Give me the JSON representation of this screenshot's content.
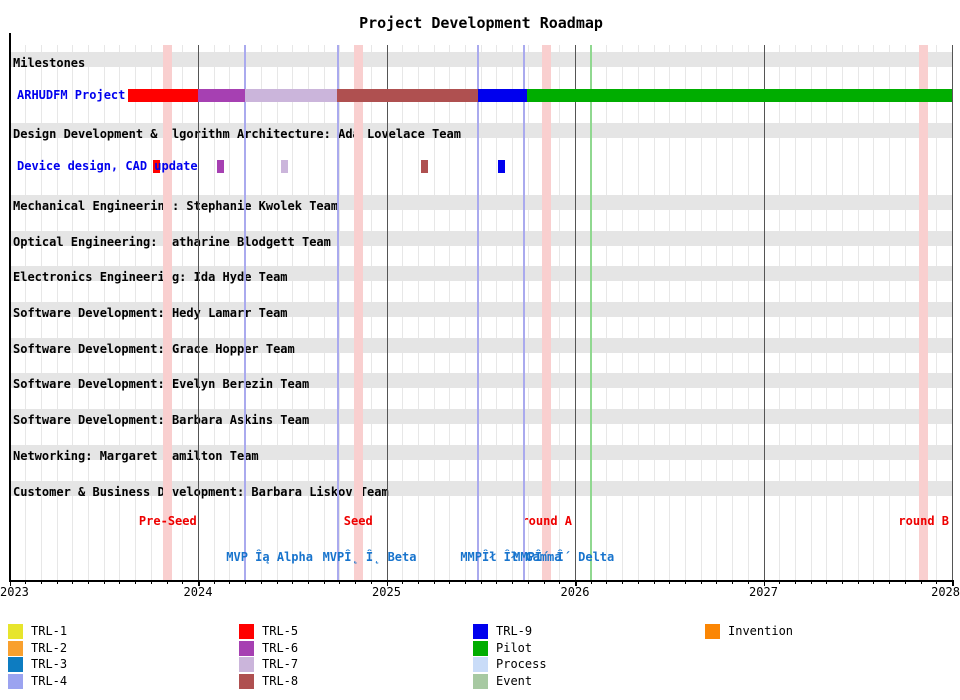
{
  "title": "Project Development Roadmap",
  "colors": {
    "background": "#FFFFFF",
    "section_band": "#E5E5E5",
    "grid_minor": "#E7E7E7",
    "grid_year": "#555555",
    "axis": "#000000",
    "task_label": "#0000EE",
    "funding_label": "#EE0000",
    "funding_band": "#F9CFCF",
    "milestone_label": "#1874CD",
    "milestone_line": "#AAAAEE",
    "event_line": "#90D890",
    "categories": {
      "TRL-1": "#E7E52C",
      "TRL-2": "#F9A02E",
      "TRL-3": "#0D7CC1",
      "TRL-4": "#9BA3F0",
      "TRL-5": "#FF0000",
      "TRL-6": "#A640B2",
      "TRL-7": "#CBB5DB",
      "TRL-8": "#AF5050",
      "TRL-9": "#0000EE",
      "Pilot": "#00AD00",
      "Process": "#C9DCF8",
      "Event": "#A7C9A2",
      "Invention": "#FB8604"
    }
  },
  "chart_data": {
    "type": "gantt",
    "title": "Project Development Roadmap",
    "x_axis": {
      "min": 2023,
      "max": 2028,
      "year_ticks": [
        "2023",
        "2024",
        "2025",
        "2026",
        "2027",
        "2028"
      ],
      "minor_tick_unit": "month",
      "grid": true
    },
    "rows": [
      {
        "kind": "section",
        "label": "Milestones"
      },
      {
        "kind": "task",
        "label": "ARHUDFM Project",
        "segments": [
          {
            "category": "TRL-5",
            "start": 2023.63,
            "end": 2024.0
          },
          {
            "category": "TRL-6",
            "start": 2024.0,
            "end": 2024.25
          },
          {
            "category": "TRL-7",
            "start": 2024.25,
            "end": 2024.74
          },
          {
            "category": "TRL-8",
            "start": 2024.74,
            "end": 2025.485
          },
          {
            "category": "TRL-9",
            "start": 2025.485,
            "end": 2025.745
          },
          {
            "category": "Pilot",
            "start": 2025.745,
            "end": 2028.0
          }
        ]
      },
      {
        "kind": "section",
        "label": "Design Development & Algorithm Architecture: Ada Lovelace Team"
      },
      {
        "kind": "task",
        "label": "Device design, CAD update",
        "events": [
          {
            "category": "TRL-5",
            "at": 2023.78
          },
          {
            "category": "TRL-6",
            "at": 2024.12
          },
          {
            "category": "TRL-7",
            "at": 2024.46
          },
          {
            "category": "TRL-8",
            "at": 2025.2
          },
          {
            "category": "TRL-9",
            "at": 2025.61
          }
        ]
      },
      {
        "kind": "section",
        "label": "Mechanical Engineering: Stephanie Kwolek Team"
      },
      {
        "kind": "section",
        "label": "Optical Engineering: Katharine Blodgett Team"
      },
      {
        "kind": "section",
        "label": "Electronics Engineering: Ida Hyde Team"
      },
      {
        "kind": "section",
        "label": "Software Development: Hedy Lamarr Team"
      },
      {
        "kind": "section",
        "label": "Software Development: Grace Hopper Team"
      },
      {
        "kind": "section",
        "label": "Software Development: Evelyn Berezin Team"
      },
      {
        "kind": "section",
        "label": "Software Development: Barbara Askins Team"
      },
      {
        "kind": "section",
        "label": "Networking: Margaret Hamilton Team"
      },
      {
        "kind": "section",
        "label": "Customer & Business Development: Barbara Liskov Team"
      }
    ],
    "funding_rounds": [
      {
        "label": "Pre-Seed",
        "at": 2023.84
      },
      {
        "label": "Seed",
        "at": 2024.85
      },
      {
        "label": "round A",
        "at": 2025.85
      },
      {
        "label": "round B",
        "at": 2027.85
      }
    ],
    "milestones": [
      {
        "label": "MVP Îą Alpha",
        "line_at": 2024.25,
        "label_center": 2024.38
      },
      {
        "label": "MVPÎ˛ Î˛ Beta",
        "line_at": 2024.745,
        "label_center": 2024.91
      },
      {
        "label": "MMPÎł Îł Gamma",
        "line_at": 2025.485,
        "label_center": 2025.66
      },
      {
        "label": "MMPÎ´ Î´ Delta",
        "line_at": 2025.73,
        "label_center": 2025.94
      }
    ],
    "event_line": {
      "at": 2026.08,
      "category": "Event"
    },
    "legend": {
      "columns": [
        [
          {
            "label": "TRL-1"
          },
          {
            "label": "TRL-2"
          },
          {
            "label": "TRL-3"
          },
          {
            "label": "TRL-4"
          }
        ],
        [
          {
            "label": "TRL-5"
          },
          {
            "label": "TRL-6"
          },
          {
            "label": "TRL-7"
          },
          {
            "label": "TRL-8"
          }
        ],
        [
          {
            "label": "TRL-9"
          },
          {
            "label": "Pilot"
          },
          {
            "label": "Process"
          },
          {
            "label": "Event"
          }
        ],
        [
          {
            "label": "Invention"
          }
        ]
      ]
    }
  }
}
